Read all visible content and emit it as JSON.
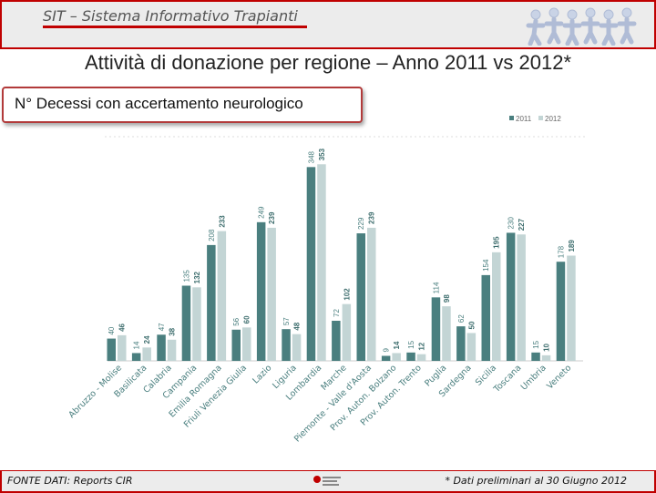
{
  "header": {
    "app_title": "SIT – Sistema Informativo Trapianti",
    "main_title": "Attività di donazione per regione – Anno 2011 vs 2012*",
    "subtitle": "N° Decessi con accertamento neurologico"
  },
  "footer": {
    "source": "FONTE DATI:  Reports CIR",
    "note": "* Dati  preliminari al 30 Giugno 2012"
  },
  "colors": {
    "series_2011": "#4a7f7f",
    "series_2012": "#c3d5d5",
    "accent": "#c00000"
  },
  "chart_data": {
    "type": "bar",
    "title": "N° Decessi con accertamento neurologico",
    "xlabel": "",
    "ylabel": "",
    "ylim": [
      0,
      360
    ],
    "grid": false,
    "legend_position": "top-right",
    "categories": [
      "Abruzzo - Molise",
      "Basilicata",
      "Calabria",
      "Campania",
      "Emilia Romagna",
      "Friuli Venezia Giulia",
      "Lazio",
      "Liguria",
      "Lombardia",
      "Marche",
      "Piemonte - Valle d'Aosta",
      "Prov. Auton. Bolzano",
      "Prov. Auton. Trento",
      "Puglia",
      "Sardegna",
      "Sicilia",
      "Toscana",
      "Umbria",
      "Veneto"
    ],
    "series": [
      {
        "name": "2011",
        "values": [
          40,
          14,
          47,
          135,
          208,
          56,
          249,
          57,
          348,
          72,
          229,
          9,
          15,
          114,
          62,
          154,
          230,
          15,
          178
        ]
      },
      {
        "name": "2012",
        "values": [
          46,
          24,
          38,
          132,
          233,
          60,
          239,
          48,
          353,
          102,
          239,
          14,
          12,
          98,
          50,
          195,
          227,
          10,
          189
        ]
      }
    ]
  }
}
